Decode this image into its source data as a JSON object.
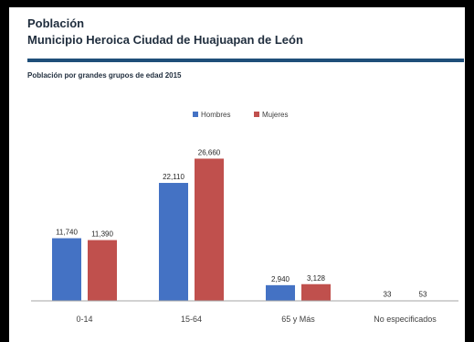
{
  "header": {
    "title": "Población",
    "subtitle": "Municipio Heroica Ciudad de Huajuapan de León"
  },
  "chart_data": {
    "type": "bar",
    "title": "Población por grandes grupos de edad 2015",
    "categories": [
      "0-14",
      "15-64",
      "65 y Más",
      "No especificados"
    ],
    "series": [
      {
        "name": "Hombres",
        "values": [
          11740,
          22110,
          2940,
          33
        ],
        "labels": [
          "11,740",
          "22,110",
          "2,940",
          "33"
        ],
        "color": "#4472c4"
      },
      {
        "name": "Mujeres",
        "values": [
          11390,
          26660,
          3128,
          53
        ],
        "labels": [
          "11,390",
          "26,660",
          "3,128",
          "53"
        ],
        "color": "#c0504d"
      }
    ],
    "ylim": [
      0,
      30000
    ],
    "legend": "top-center",
    "grid": false
  },
  "colors": {
    "rule": "#1f4e79",
    "axis": "#a6a6a6"
  }
}
